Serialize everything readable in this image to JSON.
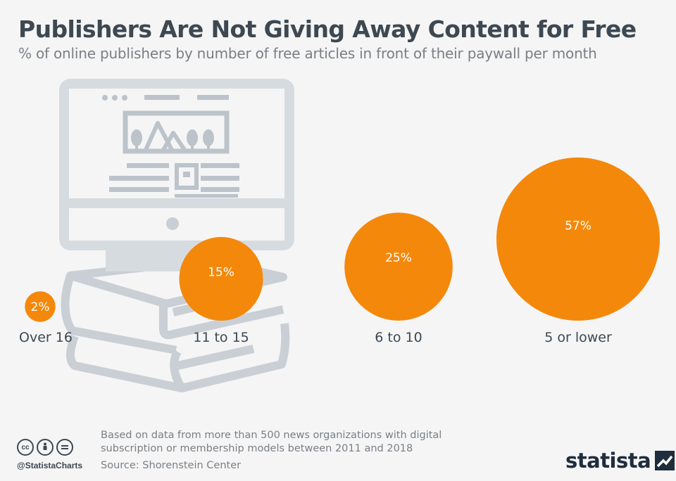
{
  "header": {
    "title": "Publishers Are Not Giving Away Content for Free",
    "subtitle": "% of online publishers by number of free articles in front of their paywall per month"
  },
  "chart_data": {
    "type": "bubble",
    "categories": [
      "Over 16",
      "11 to 15",
      "6 to 10",
      "5 or lower"
    ],
    "values": [
      2,
      15,
      25,
      57
    ],
    "value_labels": [
      "2%",
      "15%",
      "25%",
      "57%"
    ],
    "unit": "%",
    "color": "#f4880b",
    "label_color": "#ffffff"
  },
  "footer": {
    "note": "Based on data from more than 500 news organizations with digital subscription or membership models between 2011 and 2018",
    "source": "Source: Shorenstein Center",
    "handle": "@StatistaCharts",
    "brand": "statista",
    "license_icons": [
      "cc",
      "by",
      "nd"
    ]
  }
}
